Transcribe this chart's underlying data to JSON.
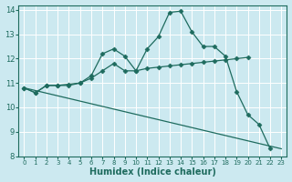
{
  "xlabel": "Humidex (Indice chaleur)",
  "bg_color": "#cce9f0",
  "grid_color": "#ffffff",
  "line_color": "#1e6b5e",
  "xlim": [
    -0.5,
    23.5
  ],
  "ylim": [
    8,
    14.2
  ],
  "yticks": [
    8,
    9,
    10,
    11,
    12,
    13,
    14
  ],
  "xticks": [
    0,
    1,
    2,
    3,
    4,
    5,
    6,
    7,
    8,
    9,
    10,
    11,
    12,
    13,
    14,
    15,
    16,
    17,
    18,
    19,
    20,
    21,
    22,
    23
  ],
  "lines": [
    {
      "x": [
        0,
        1,
        2,
        3,
        4,
        5,
        6,
        7,
        8,
        9,
        10,
        11,
        12,
        13,
        14,
        15,
        16,
        17,
        18,
        19,
        20,
        21,
        22
      ],
      "y": [
        10.8,
        10.6,
        10.9,
        10.9,
        10.9,
        11.0,
        11.3,
        12.2,
        12.4,
        12.1,
        11.5,
        12.4,
        12.9,
        13.9,
        13.95,
        13.1,
        12.5,
        12.5,
        12.1,
        10.65,
        9.7,
        9.3,
        8.3
      ],
      "marker": "D",
      "linestyle": "-",
      "markersize": 2.5
    },
    {
      "x": [
        0,
        1,
        2,
        3,
        4,
        5,
        6,
        7,
        8,
        9,
        10,
        11,
        12,
        13,
        14,
        15,
        16,
        17,
        18,
        19,
        20
      ],
      "y": [
        10.8,
        10.6,
        10.9,
        10.9,
        10.95,
        11.0,
        11.2,
        11.5,
        11.8,
        11.5,
        11.5,
        11.6,
        11.65,
        11.7,
        11.75,
        11.8,
        11.85,
        11.9,
        11.95,
        12.0,
        12.05
      ],
      "marker": "D",
      "linestyle": "-",
      "markersize": 2.5
    },
    {
      "x": [
        0,
        23
      ],
      "y": [
        10.8,
        8.3
      ],
      "marker": null,
      "linestyle": "-",
      "markersize": 0
    }
  ]
}
